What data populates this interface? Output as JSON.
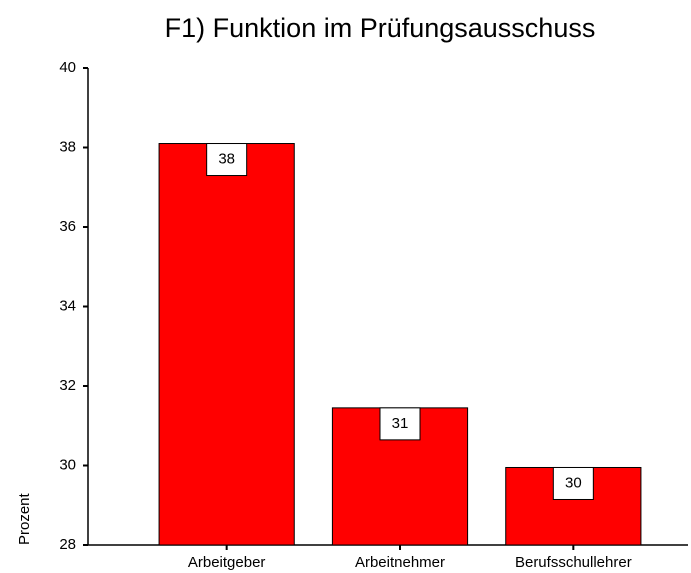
{
  "chart_data": {
    "type": "bar",
    "title": "F1) Funktion im Prüfungsausschuss",
    "y_label": "Prozent",
    "categories": [
      "Arbeitgeber",
      "Arbeitnehmer",
      "Berufsschullehrer"
    ],
    "values": [
      38.1,
      31.45,
      29.95
    ],
    "value_labels": [
      "38",
      "31",
      "30"
    ],
    "color": "#ff0000",
    "ylim": [
      28,
      40
    ],
    "yticks": [
      28,
      30,
      32,
      34,
      36,
      38,
      40
    ],
    "grid": false
  }
}
